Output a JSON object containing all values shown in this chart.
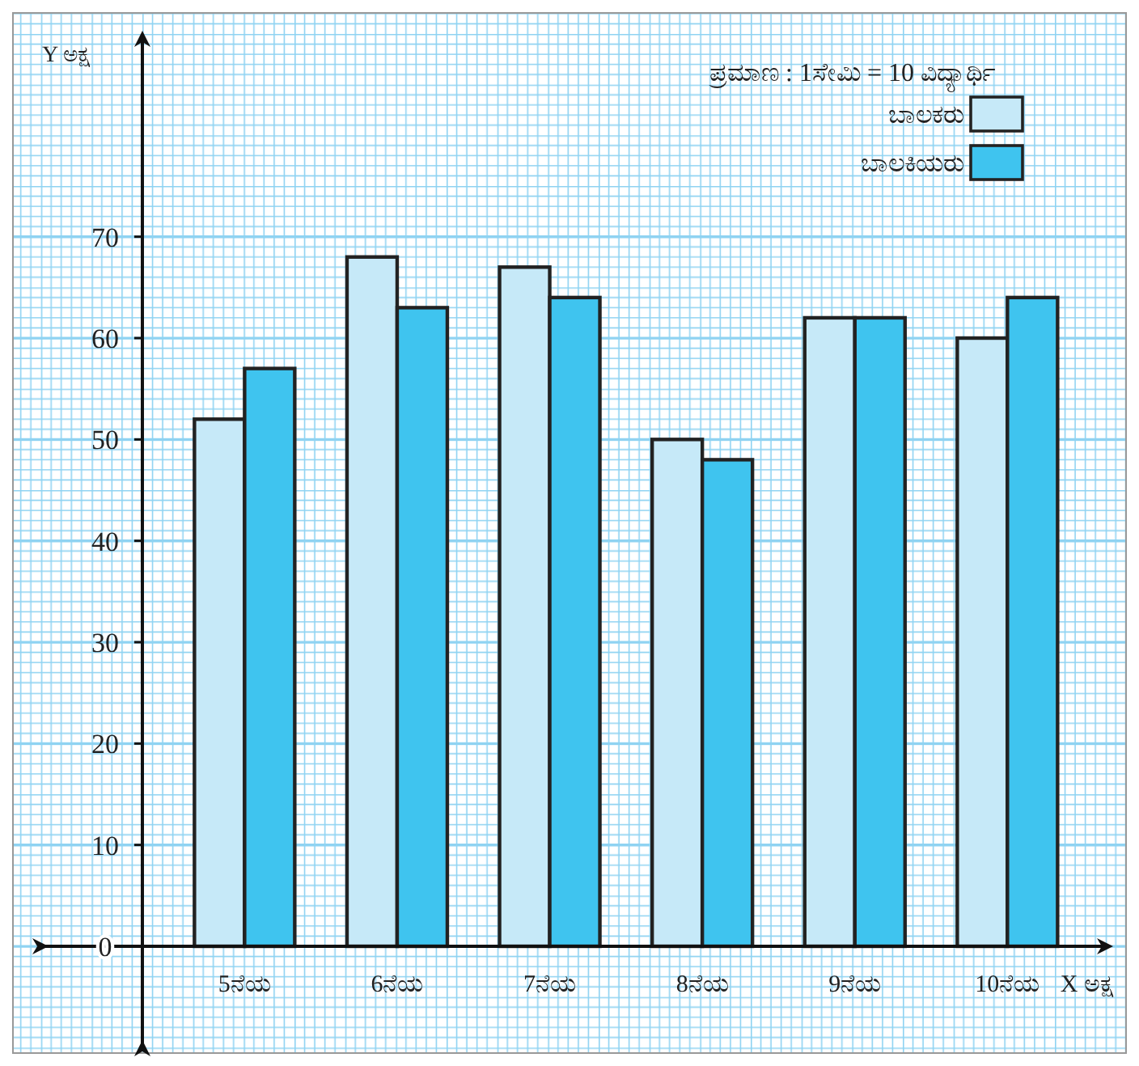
{
  "chart_data": {
    "type": "bar",
    "xlabel": "X ಅಕ್ಷ",
    "ylabel": "Y ಅಕ್ಷ",
    "annotations": [
      "ಪ್ರಮಾಣ : 1ಸೇಮಿ = 10 ವಿದ್ಯಾರ್ಥಿ"
    ],
    "categories": [
      "5ನೆಯ",
      "6ನೆಯ",
      "7ನೆಯ",
      "8ನೆಯ",
      "9ನೆಯ",
      "10ನೆಯ"
    ],
    "series": [
      {
        "name": "ಬಾಲಕರು",
        "color": "#c6e9f8",
        "values": [
          52,
          68,
          67,
          50,
          62,
          60
        ]
      },
      {
        "name": "ಬಾಲಕಿಯರು",
        "color": "#3fc4ef",
        "values": [
          57,
          63,
          64,
          48,
          62,
          64
        ]
      }
    ],
    "ylim": [
      0,
      90
    ],
    "yticks": [
      0,
      10,
      20,
      30,
      40,
      50,
      60,
      70
    ],
    "grid": true,
    "legend": "top right"
  }
}
